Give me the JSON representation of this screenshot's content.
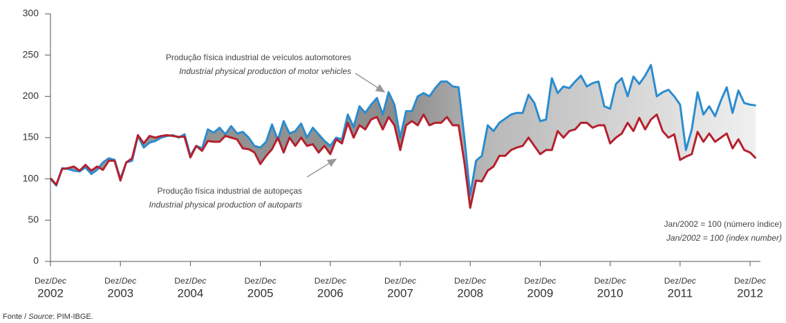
{
  "chart_data": {
    "type": "line",
    "x": [
      "2002-12",
      "2003-01",
      "2003-02",
      "2003-03",
      "2003-04",
      "2003-05",
      "2003-06",
      "2003-07",
      "2003-08",
      "2003-09",
      "2003-10",
      "2003-11",
      "2003-12",
      "2004-01",
      "2004-02",
      "2004-03",
      "2004-04",
      "2004-05",
      "2004-06",
      "2004-07",
      "2004-08",
      "2004-09",
      "2004-10",
      "2004-11",
      "2004-12",
      "2005-01",
      "2005-02",
      "2005-03",
      "2005-04",
      "2005-05",
      "2005-06",
      "2005-07",
      "2005-08",
      "2005-09",
      "2005-10",
      "2005-11",
      "2005-12",
      "2006-01",
      "2006-02",
      "2006-03",
      "2006-04",
      "2006-05",
      "2006-06",
      "2006-07",
      "2006-08",
      "2006-09",
      "2006-10",
      "2006-11",
      "2006-12",
      "2007-01",
      "2007-02",
      "2007-03",
      "2007-04",
      "2007-05",
      "2007-06",
      "2007-07",
      "2007-08",
      "2007-09",
      "2007-10",
      "2007-11",
      "2007-12",
      "2008-01",
      "2008-02",
      "2008-03",
      "2008-04",
      "2008-05",
      "2008-06",
      "2008-07",
      "2008-08",
      "2008-09",
      "2008-10",
      "2008-11",
      "2008-12",
      "2009-01",
      "2009-02",
      "2009-03",
      "2009-04",
      "2009-05",
      "2009-06",
      "2009-07",
      "2009-08",
      "2009-09",
      "2009-10",
      "2009-11",
      "2009-12",
      "2010-01",
      "2010-02",
      "2010-03",
      "2010-04",
      "2010-05",
      "2010-06",
      "2010-07",
      "2010-08",
      "2010-09",
      "2010-10",
      "2010-11",
      "2010-12",
      "2011-01",
      "2011-02",
      "2011-03",
      "2011-04",
      "2011-05",
      "2011-06",
      "2011-07",
      "2011-08",
      "2011-09",
      "2011-10",
      "2011-11",
      "2011-12",
      "2012-01",
      "2012-02",
      "2012-03",
      "2012-04",
      "2012-05",
      "2012-06",
      "2012-07",
      "2012-08",
      "2012-09",
      "2012-10",
      "2012-11",
      "2012-12",
      "2013-01"
    ],
    "xlim": [
      "2002-12",
      "2012-12"
    ],
    "xticks": [
      {
        "value": "2002-12",
        "label": "2002"
      },
      {
        "value": "2003-12",
        "label": "2003"
      },
      {
        "value": "2004-12",
        "label": "2004"
      },
      {
        "value": "2005-12",
        "label": "2005"
      },
      {
        "value": "2006-12",
        "label": "2006"
      },
      {
        "value": "2007-12",
        "label": "2007"
      },
      {
        "value": "2008-12",
        "label": "2008"
      },
      {
        "value": "2009-12",
        "label": "2009"
      },
      {
        "value": "2010-12",
        "label": "2010"
      },
      {
        "value": "2011-12",
        "label": "2011"
      },
      {
        "value": "2012-12",
        "label": "2012"
      }
    ],
    "xtick_month": "Dez/",
    "xtick_month_en": "Dec",
    "ylim": [
      0,
      300
    ],
    "yticks": [
      0,
      50,
      100,
      150,
      200,
      250,
      300
    ],
    "series": [
      {
        "name": "Produção física industrial de veículos automotores",
        "name_en": "Industrial physical production of motor vehicles",
        "color": "#2a8ccf",
        "values": [
          100,
          92,
          113,
          112,
          110,
          109,
          114,
          106,
          111,
          120,
          125,
          123,
          100,
          120,
          122,
          152,
          138,
          144,
          146,
          150,
          152,
          153,
          150,
          154,
          128,
          140,
          137,
          160,
          156,
          162,
          154,
          164,
          155,
          157,
          150,
          140,
          138,
          145,
          166,
          147,
          170,
          155,
          158,
          167,
          150,
          162,
          154,
          146,
          140,
          150,
          148,
          178,
          163,
          188,
          180,
          190,
          198,
          178,
          205,
          190,
          150,
          182,
          182,
          200,
          204,
          200,
          210,
          218,
          218,
          212,
          211,
          150,
          80,
          122,
          128,
          165,
          158,
          168,
          173,
          178,
          180,
          180,
          202,
          192,
          170,
          172,
          222,
          204,
          212,
          210,
          218,
          225,
          212,
          216,
          218,
          188,
          185,
          215,
          222,
          200,
          224,
          215,
          225,
          238,
          200,
          205,
          208,
          200,
          190,
          135,
          160,
          205,
          178,
          188,
          176,
          195,
          211,
          180,
          207,
          192,
          190,
          189
        ]
      },
      {
        "name": "Produção física industrial de autopeças",
        "name_en": "Industrial physical production of autoparts",
        "color": "#b5202e",
        "values": [
          101,
          93,
          112,
          113,
          115,
          110,
          117,
          110,
          115,
          111,
          122,
          122,
          98,
          120,
          125,
          153,
          143,
          152,
          150,
          152,
          153,
          152,
          151,
          151,
          126,
          140,
          134,
          146,
          145,
          145,
          152,
          150,
          148,
          137,
          136,
          132,
          118,
          128,
          136,
          150,
          132,
          150,
          140,
          150,
          140,
          142,
          132,
          140,
          130,
          148,
          143,
          168,
          150,
          165,
          160,
          172,
          175,
          160,
          175,
          165,
          135,
          165,
          170,
          165,
          178,
          165,
          168,
          168,
          175,
          165,
          165,
          120,
          65,
          98,
          97,
          110,
          115,
          128,
          128,
          135,
          138,
          140,
          150,
          140,
          130,
          135,
          135,
          158,
          150,
          158,
          160,
          168,
          168,
          162,
          165,
          165,
          143,
          150,
          155,
          168,
          158,
          174,
          160,
          172,
          178,
          158,
          150,
          154,
          123,
          127,
          130,
          157,
          145,
          155,
          145,
          150,
          155,
          137,
          148,
          135,
          132,
          125
        ]
      }
    ],
    "note": "Jan/2002 = 100 (número índice)",
    "note_en": "Jan/2002 = 100 (index number)",
    "source_label": "Fonte / ",
    "source_label_en": "Source",
    "source": ": PIM-IBGE."
  }
}
